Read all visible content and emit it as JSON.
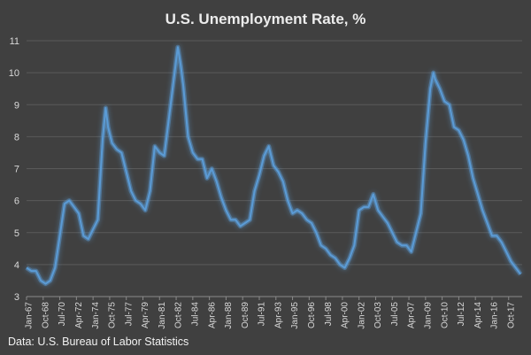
{
  "chart_data": {
    "type": "line",
    "title": "U.S. Unemployment Rate, %",
    "xlabel": "",
    "ylabel": "",
    "ylim": [
      3,
      11
    ],
    "yticks": [
      3,
      4,
      5,
      6,
      7,
      8,
      9,
      10,
      11
    ],
    "grid": "horizontal",
    "xlim": [
      1967.0,
      2019.17
    ],
    "xtick_labels": [
      "Jan-67",
      "Oct-68",
      "Jul-70",
      "Apr-72",
      "Jan-74",
      "Oct-75",
      "Jul-77",
      "Apr-79",
      "Jan-81",
      "Oct-82",
      "Jul-84",
      "Apr-86",
      "Jan-88",
      "Oct-89",
      "Jul-91",
      "Apr-93",
      "Jan-95",
      "Oct-96",
      "Jul-98",
      "Apr-00",
      "Jan-02",
      "Oct-03",
      "Jul-05",
      "Apr-07",
      "Jan-09",
      "Oct-10",
      "Jul-12",
      "Apr-14",
      "Jan-16",
      "Oct-17"
    ],
    "series": [
      {
        "name": "Unemployment rate",
        "color": "#5b9bd5",
        "x": [
          1967.0,
          1967.5,
          1968.0,
          1968.5,
          1969.0,
          1969.5,
          1970.0,
          1970.5,
          1971.0,
          1971.5,
          1972.0,
          1972.5,
          1973.0,
          1973.5,
          1974.0,
          1974.5,
          1975.0,
          1975.33,
          1975.58,
          1976.0,
          1976.5,
          1977.0,
          1977.5,
          1978.0,
          1978.5,
          1979.0,
          1979.5,
          1980.0,
          1980.5,
          1981.0,
          1981.5,
          1982.0,
          1982.5,
          1982.92,
          1983.25,
          1983.5,
          1984.0,
          1984.5,
          1985.0,
          1985.5,
          1986.0,
          1986.5,
          1987.0,
          1987.5,
          1988.0,
          1988.5,
          1989.0,
          1989.5,
          1990.0,
          1990.5,
          1991.0,
          1991.5,
          1992.0,
          1992.5,
          1993.0,
          1993.5,
          1994.0,
          1994.5,
          1995.0,
          1995.5,
          1996.0,
          1996.5,
          1997.0,
          1997.5,
          1998.0,
          1998.5,
          1999.0,
          1999.5,
          2000.0,
          2000.5,
          2001.0,
          2001.5,
          2002.0,
          2002.5,
          2003.0,
          2003.5,
          2004.0,
          2004.5,
          2005.0,
          2005.5,
          2006.0,
          2006.5,
          2007.0,
          2007.5,
          2008.0,
          2008.5,
          2009.0,
          2009.5,
          2009.83,
          2010.0,
          2010.5,
          2011.0,
          2011.5,
          2012.0,
          2012.5,
          2013.0,
          2013.5,
          2014.0,
          2014.5,
          2015.0,
          2015.5,
          2016.0,
          2016.5,
          2017.0,
          2017.5,
          2018.0,
          2018.5,
          2019.0
        ],
        "values": [
          3.9,
          3.8,
          3.8,
          3.5,
          3.4,
          3.5,
          3.9,
          4.9,
          5.9,
          6.0,
          5.8,
          5.6,
          4.9,
          4.8,
          5.1,
          5.4,
          7.9,
          8.9,
          8.3,
          7.8,
          7.6,
          7.5,
          6.9,
          6.3,
          6.0,
          5.9,
          5.7,
          6.3,
          7.7,
          7.5,
          7.4,
          8.6,
          9.8,
          10.8,
          10.2,
          9.6,
          8.0,
          7.5,
          7.3,
          7.3,
          6.7,
          7.0,
          6.6,
          6.1,
          5.7,
          5.4,
          5.4,
          5.2,
          5.3,
          5.4,
          6.3,
          6.8,
          7.4,
          7.7,
          7.1,
          6.9,
          6.6,
          6.0,
          5.6,
          5.7,
          5.6,
          5.4,
          5.3,
          5.0,
          4.6,
          4.5,
          4.3,
          4.2,
          4.0,
          3.9,
          4.2,
          4.6,
          5.7,
          5.8,
          5.8,
          6.2,
          5.7,
          5.5,
          5.3,
          5.0,
          4.7,
          4.6,
          4.6,
          4.4,
          5.0,
          5.6,
          7.8,
          9.5,
          10.0,
          9.8,
          9.5,
          9.1,
          9.0,
          8.3,
          8.2,
          7.9,
          7.4,
          6.7,
          6.2,
          5.7,
          5.3,
          4.9,
          4.9,
          4.7,
          4.4,
          4.1,
          3.9,
          3.7
        ]
      }
    ],
    "source": "Data: U.S. Bureau of Labor Statistics"
  }
}
